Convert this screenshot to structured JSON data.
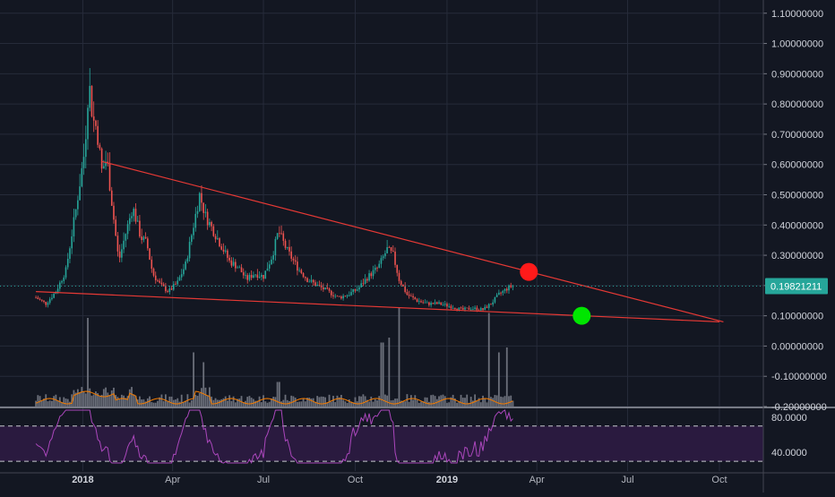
{
  "chart_data": {
    "type": "candlestick",
    "price_axis": {
      "ticks": [
        "1.10000000",
        "1.00000000",
        "0.90000000",
        "0.80000000",
        "0.70000000",
        "0.60000000",
        "0.50000000",
        "0.40000000",
        "0.30000000",
        "0.20000000",
        "0.10000000",
        "0.00000000",
        "-0.10000000",
        "-0.20000000"
      ],
      "tick_values": [
        1.1,
        1.0,
        0.9,
        0.8,
        0.7,
        0.6,
        0.5,
        0.4,
        0.3,
        0.2,
        0.1,
        0.0,
        -0.1,
        -0.2
      ],
      "range": [
        -0.2,
        1.12
      ]
    },
    "last_price": {
      "label": "0.19821211",
      "value": 0.1982,
      "color": "#26a69a"
    },
    "time_axis": {
      "labels": [
        {
          "text": "2018",
          "date": "2018-01-01",
          "bold": true
        },
        {
          "text": "Apr",
          "date": "2018-04-01",
          "bold": false
        },
        {
          "text": "Jul",
          "date": "2018-07-01",
          "bold": false
        },
        {
          "text": "Oct",
          "date": "2018-10-01",
          "bold": false
        },
        {
          "text": "2019",
          "date": "2019-01-01",
          "bold": true
        },
        {
          "text": "Apr",
          "date": "2019-04-01",
          "bold": false
        },
        {
          "text": "Jul",
          "date": "2019-07-01",
          "bold": false
        },
        {
          "text": "Oct",
          "date": "2019-10-01",
          "bold": false
        }
      ],
      "range": [
        "2017-10-10",
        "2019-11-14"
      ]
    },
    "price_path": [
      [
        "2017-11-15",
        0.16
      ],
      [
        "2017-11-25",
        0.14
      ],
      [
        "2017-12-05",
        0.18
      ],
      [
        "2017-12-15",
        0.25
      ],
      [
        "2017-12-25",
        0.45
      ],
      [
        "2018-01-03",
        0.65
      ],
      [
        "2018-01-07",
        0.88
      ],
      [
        "2018-01-11",
        0.75
      ],
      [
        "2018-01-15",
        0.72
      ],
      [
        "2018-01-20",
        0.58
      ],
      [
        "2018-01-25",
        0.62
      ],
      [
        "2018-02-01",
        0.42
      ],
      [
        "2018-02-06",
        0.28
      ],
      [
        "2018-02-12",
        0.36
      ],
      [
        "2018-02-20",
        0.46
      ],
      [
        "2018-02-28",
        0.36
      ],
      [
        "2018-03-06",
        0.34
      ],
      [
        "2018-03-12",
        0.24
      ],
      [
        "2018-03-20",
        0.2
      ],
      [
        "2018-03-28",
        0.18
      ],
      [
        "2018-04-06",
        0.21
      ],
      [
        "2018-04-14",
        0.27
      ],
      [
        "2018-04-22",
        0.4
      ],
      [
        "2018-04-28",
        0.5
      ],
      [
        "2018-05-04",
        0.43
      ],
      [
        "2018-05-12",
        0.38
      ],
      [
        "2018-05-20",
        0.33
      ],
      [
        "2018-05-28",
        0.28
      ],
      [
        "2018-06-06",
        0.26
      ],
      [
        "2018-06-14",
        0.22
      ],
      [
        "2018-06-22",
        0.24
      ],
      [
        "2018-07-01",
        0.23
      ],
      [
        "2018-07-10",
        0.3
      ],
      [
        "2018-07-16",
        0.38
      ],
      [
        "2018-07-24",
        0.32
      ],
      [
        "2018-08-04",
        0.26
      ],
      [
        "2018-08-14",
        0.22
      ],
      [
        "2018-08-24",
        0.2
      ],
      [
        "2018-09-04",
        0.18
      ],
      [
        "2018-09-14",
        0.16
      ],
      [
        "2018-09-24",
        0.17
      ],
      [
        "2018-10-04",
        0.19
      ],
      [
        "2018-10-14",
        0.23
      ],
      [
        "2018-10-24",
        0.26
      ],
      [
        "2018-11-02",
        0.32
      ],
      [
        "2018-11-08",
        0.3
      ],
      [
        "2018-11-14",
        0.22
      ],
      [
        "2018-11-22",
        0.17
      ],
      [
        "2018-12-02",
        0.15
      ],
      [
        "2018-12-12",
        0.14
      ],
      [
        "2018-12-24",
        0.14
      ],
      [
        "2019-01-06",
        0.13
      ],
      [
        "2019-01-16",
        0.12
      ],
      [
        "2019-01-26",
        0.125
      ],
      [
        "2019-02-06",
        0.12
      ],
      [
        "2019-02-14",
        0.14
      ],
      [
        "2019-02-22",
        0.17
      ],
      [
        "2019-03-02",
        0.19
      ],
      [
        "2019-03-08",
        0.2
      ]
    ],
    "volume_spikes": [
      [
        "2018-01-06",
        0.9
      ],
      [
        "2018-04-22",
        0.55
      ],
      [
        "2018-05-02",
        0.45
      ],
      [
        "2018-07-16",
        0.25
      ],
      [
        "2018-10-28",
        0.65
      ],
      [
        "2018-11-04",
        0.7
      ],
      [
        "2018-11-14",
        1.0
      ],
      [
        "2019-02-12",
        0.95
      ],
      [
        "2019-02-22",
        0.55
      ],
      [
        "2019-03-02",
        0.6
      ]
    ],
    "trendlines": [
      {
        "color": "#e53935",
        "from": [
          "2018-01-20",
          0.61
        ],
        "to": [
          "2019-10-05",
          0.08
        ]
      },
      {
        "color": "#e53935",
        "from": [
          "2017-11-15",
          0.18
        ],
        "to": [
          "2019-10-01",
          0.08
        ]
      }
    ],
    "markers": [
      {
        "date": "2019-03-24",
        "price": 0.245,
        "color": "#ff1a1a"
      },
      {
        "date": "2019-05-16",
        "price": 0.1,
        "color": "#00e600"
      }
    ],
    "rsi": {
      "ticks": [
        "80.0000",
        "40.0000"
      ],
      "tick_values": [
        80,
        40
      ],
      "bands": [
        70,
        30
      ],
      "range": [
        25,
        90
      ],
      "color": "#ab47bc",
      "band_fill": "#2a1a3f"
    },
    "colors": {
      "up": "#26a69a",
      "down": "#ef5350",
      "background": "#131722",
      "grid": "#262b3a",
      "volume": "#6b6f7a",
      "volume_ma": "#f57c00"
    }
  }
}
